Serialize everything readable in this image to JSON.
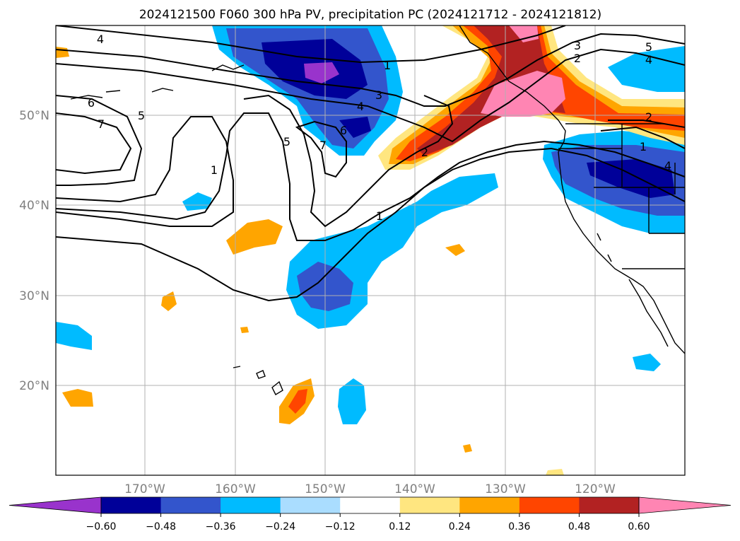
{
  "title": "2024121500 F060 300 hPa PV, precipitation PC (2024121712 - 2024121812)",
  "latitude_labels": [
    "50°N",
    "40°N",
    "30°N",
    "20°N"
  ],
  "longitude_labels": [
    "170°W",
    "160°W",
    "150°W",
    "140°W",
    "130°W",
    "120°W"
  ],
  "contour_labels": [
    "4",
    "6",
    "7",
    "5",
    "1",
    "5",
    "7",
    "6",
    "4",
    "3",
    "1",
    "2",
    "1",
    "3",
    "2",
    "5",
    "4",
    "2",
    "1",
    "4"
  ],
  "colorbar": {
    "ticks": [
      "−0.60",
      "−0.48",
      "−0.36",
      "−0.24",
      "−0.12",
      "0.12",
      "0.24",
      "0.36",
      "0.48",
      "0.60"
    ],
    "colors": [
      "#9933cc",
      "#000099",
      "#3355cc",
      "#00bbff",
      "#aaddff",
      "#ffffff",
      "#ffe680",
      "#ffa500",
      "#ff4500",
      "#b22222",
      "#ff85b3"
    ]
  },
  "colors": {
    "strong_negative": "#000099",
    "negative": "#3355cc",
    "weak_negative": "#00bbff",
    "very_weak_negative": "#aaddff",
    "very_weak_positive": "#ffe680",
    "weak_positive": "#ffa500",
    "positive": "#ff4500",
    "strong_positive": "#b22222",
    "max_positive": "#ff85b3",
    "min_negative": "#9933cc"
  }
}
